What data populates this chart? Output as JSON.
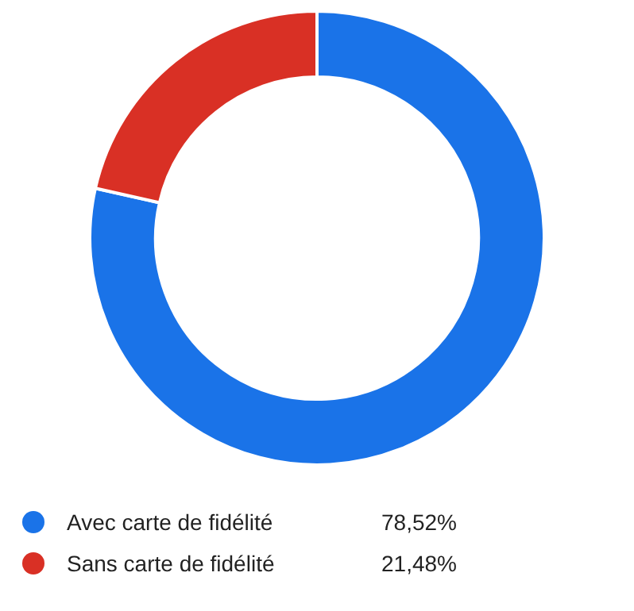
{
  "chart_data": {
    "type": "donut",
    "categories": [
      "Avec carte de fidélité",
      "Sans carte de fidélité"
    ],
    "values": [
      78.52,
      21.48
    ],
    "colors": [
      "#1a73e8",
      "#d93025"
    ],
    "value_labels": [
      "78,52%",
      "21,48%"
    ],
    "legend": "bottom"
  }
}
